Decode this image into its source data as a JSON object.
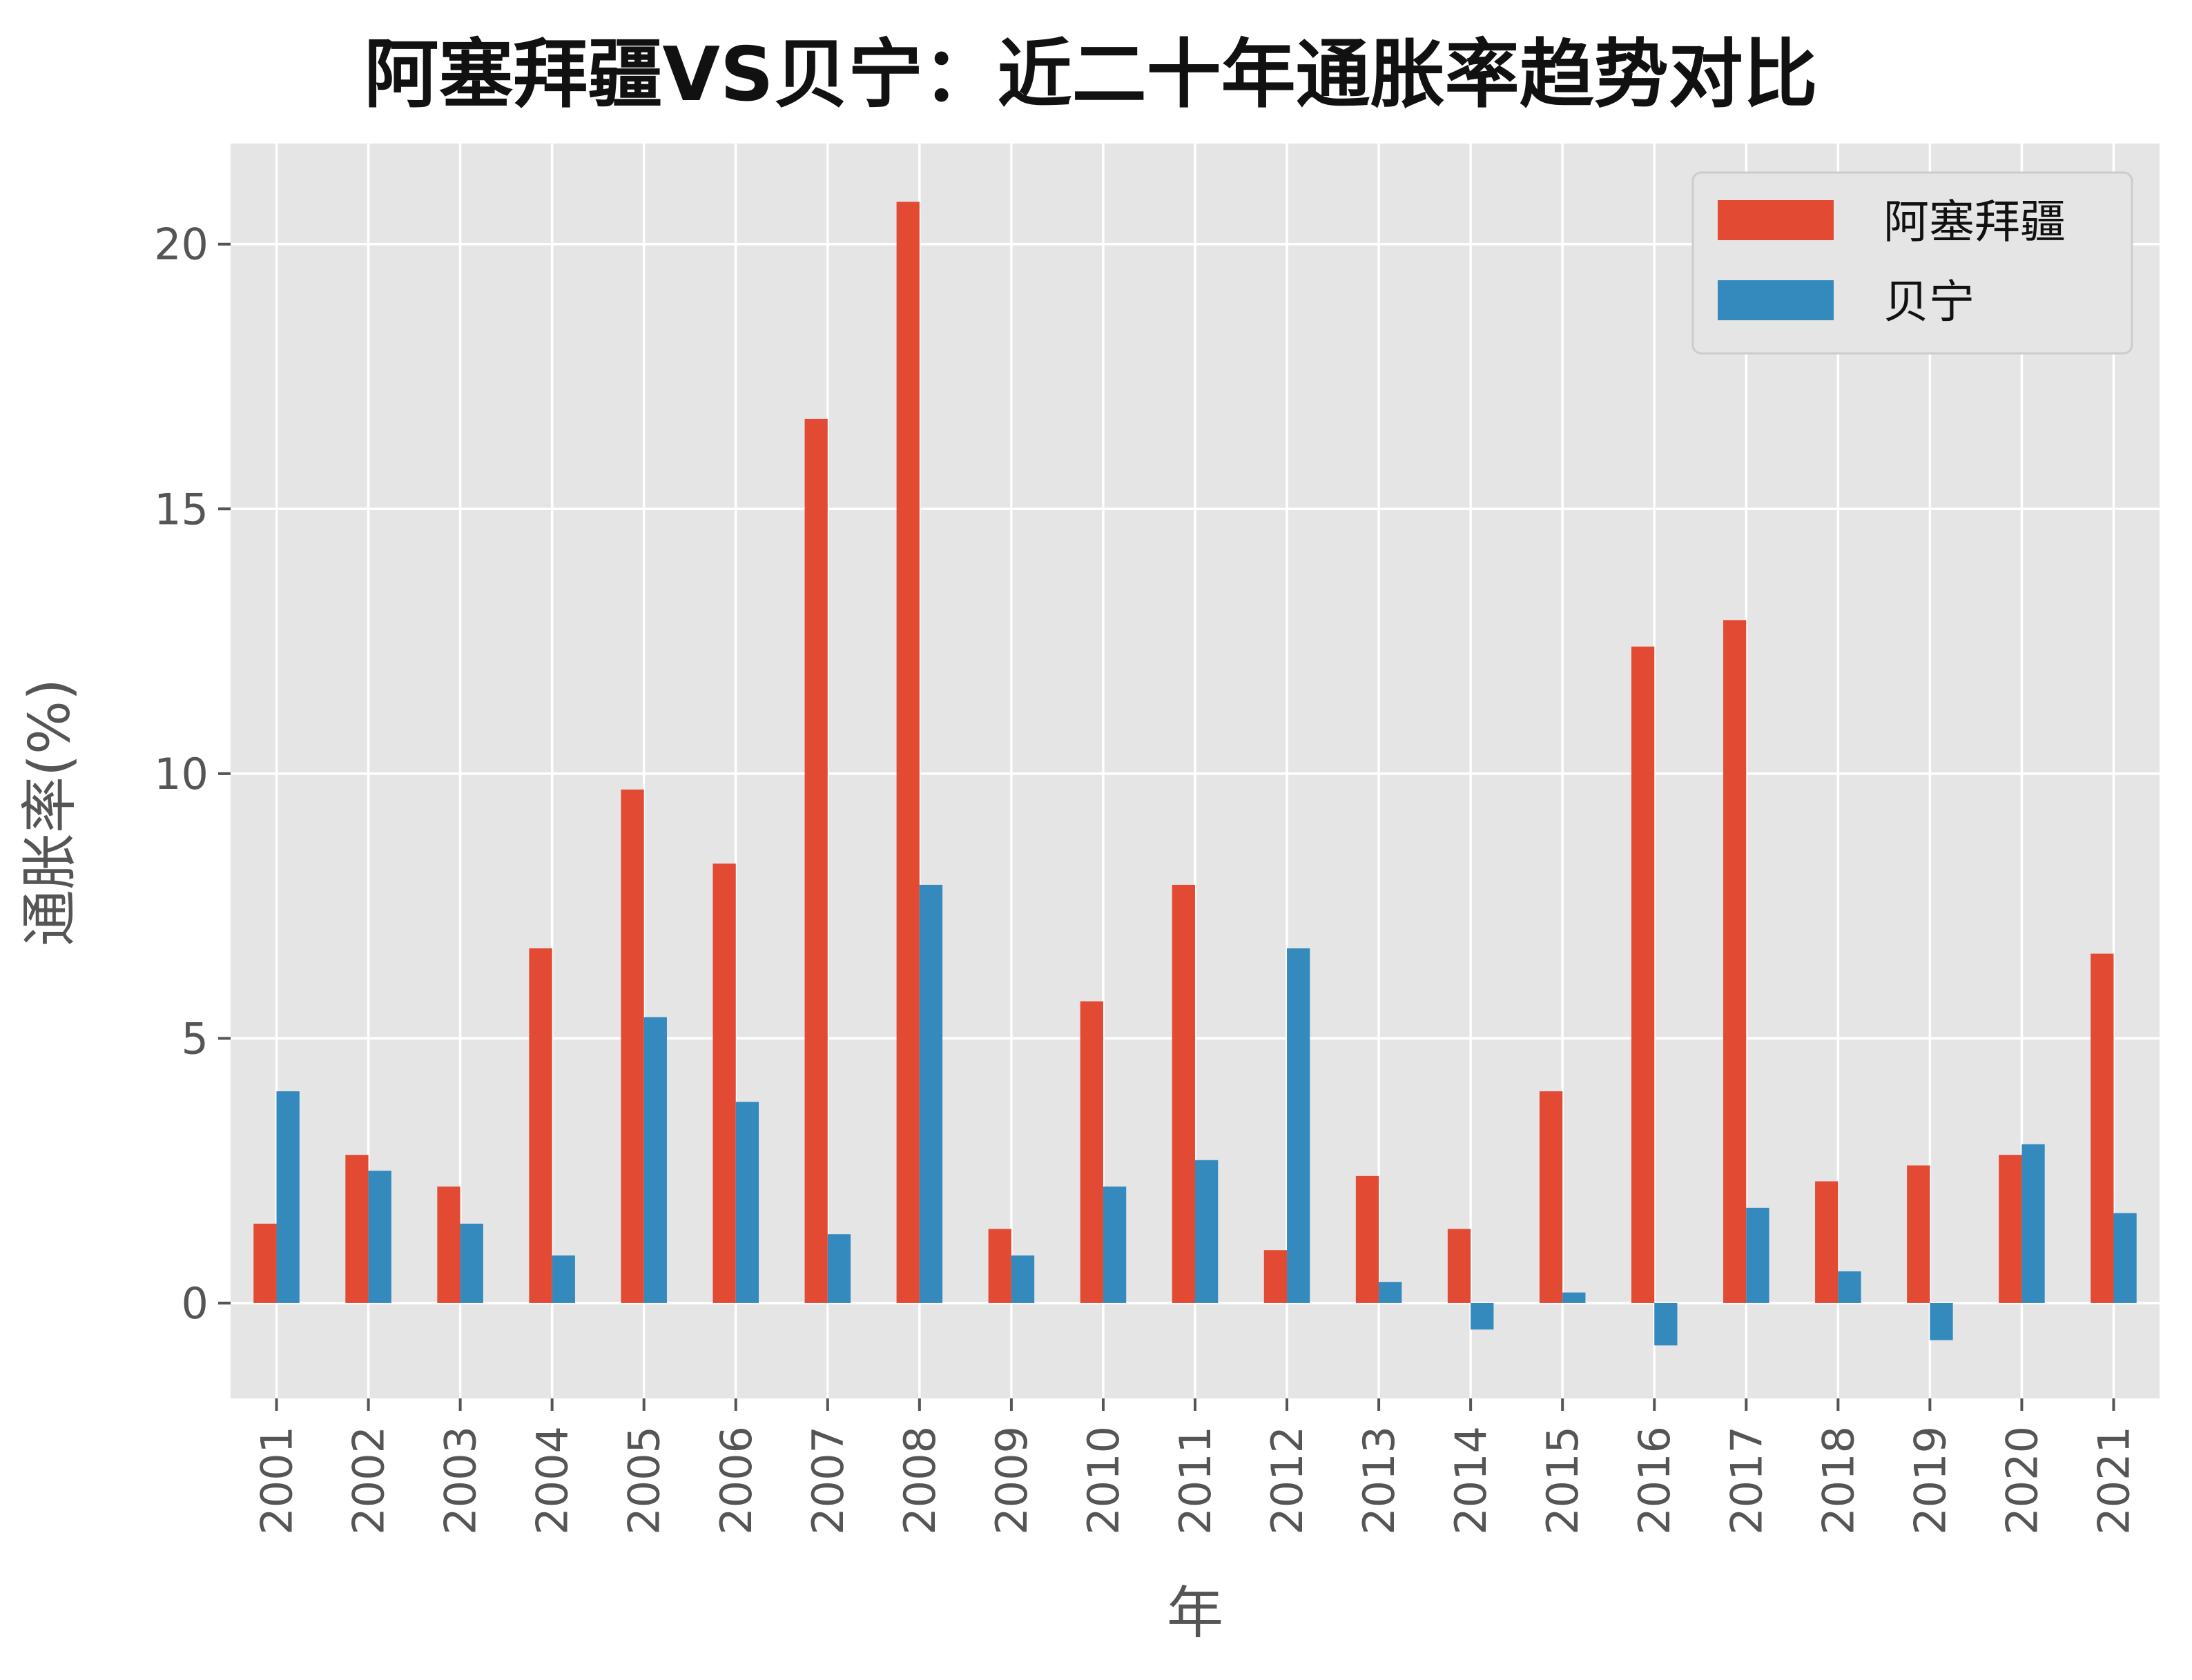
{
  "chart_data": {
    "type": "bar",
    "title": "阿塞拜疆VS贝宁：近二十年通胀率趋势对比",
    "xlabel": "年",
    "ylabel": "通胀率(%)",
    "categories": [
      "2001",
      "2002",
      "2003",
      "2004",
      "2005",
      "2006",
      "2007",
      "2008",
      "2009",
      "2010",
      "2011",
      "2012",
      "2013",
      "2014",
      "2015",
      "2016",
      "2017",
      "2018",
      "2019",
      "2020",
      "2021"
    ],
    "series": [
      {
        "name": "阿塞拜疆",
        "color": "#E24A33",
        "values": [
          1.5,
          2.8,
          2.2,
          6.7,
          9.7,
          8.3,
          16.7,
          20.8,
          1.4,
          5.7,
          7.9,
          1.0,
          2.4,
          1.4,
          4.0,
          12.4,
          12.9,
          2.3,
          2.6,
          2.8,
          6.6
        ]
      },
      {
        "name": "贝宁",
        "color": "#348ABD",
        "values": [
          4.0,
          2.5,
          1.5,
          0.9,
          5.4,
          3.8,
          1.3,
          7.9,
          0.9,
          2.2,
          2.7,
          6.7,
          0.4,
          -0.5,
          0.2,
          -0.8,
          1.8,
          0.6,
          -0.7,
          3.0,
          1.7
        ]
      }
    ],
    "yticks": [
      0,
      5,
      10,
      15,
      20
    ],
    "ylim": [
      -1.8,
      21.9
    ],
    "grid": true,
    "legend": "top-right",
    "background": "#E5E5E5",
    "grid_color": "#FFFFFF"
  }
}
